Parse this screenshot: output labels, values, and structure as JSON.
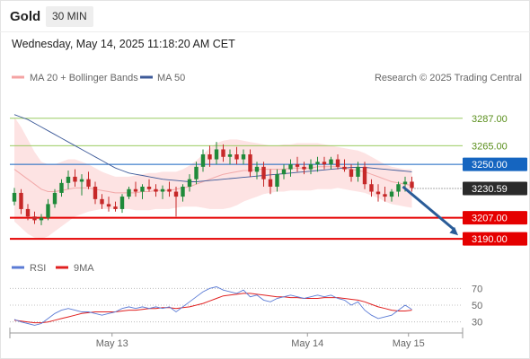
{
  "header": {
    "instrument": "Gold",
    "timeframe": "30 MIN",
    "timestamp": "Wednesday, May 14, 2025 11:18:20 AM CET",
    "credit": "Research © 2025 Trading Central"
  },
  "colors": {
    "bollinger_fill": "#fde3e3",
    "bollinger_mid": "#f2a9a9",
    "ma50": "#3d5a99",
    "resistance": "#8bc34a",
    "pivot": "#1565c0",
    "support": "#e50000",
    "candle_up": "#1f8a3a",
    "candle_down": "#c62828",
    "arrow": "#2a5c98",
    "rsi": "#5b7bd5",
    "rsi_ma": "#e02020"
  },
  "chart_data": {
    "type": "candlestick",
    "legend": [
      {
        "label": "MA 20 + Bollinger Bands",
        "color": "#f4a3a3"
      },
      {
        "label": "MA 50",
        "color": "#3d5a99"
      }
    ],
    "ylim": [
      3180,
      3310
    ],
    "levels": [
      {
        "label": "3287.00",
        "value": 3287.0,
        "kind": "resistance"
      },
      {
        "label": "3265.00",
        "value": 3265.0,
        "kind": "resistance"
      },
      {
        "label": "3250.00",
        "value": 3250.0,
        "kind": "pivot"
      },
      {
        "label": "3207.00",
        "value": 3207.0,
        "kind": "support"
      },
      {
        "label": "3190.00",
        "value": 3190.0,
        "kind": "support"
      }
    ],
    "last_price": {
      "label": "3230.59",
      "value": 3230.59
    },
    "forecast_arrow": {
      "from_index": 57,
      "from_value": 3232,
      "to_value": 3190
    },
    "candles": [
      [
        3220,
        3231,
        3217,
        3227
      ],
      [
        3227,
        3230,
        3210,
        3214
      ],
      [
        3214,
        3218,
        3205,
        3208
      ],
      [
        3208,
        3212,
        3202,
        3205
      ],
      [
        3205,
        3210,
        3201,
        3207
      ],
      [
        3207,
        3222,
        3205,
        3218
      ],
      [
        3218,
        3230,
        3215,
        3227
      ],
      [
        3227,
        3238,
        3224,
        3235
      ],
      [
        3235,
        3245,
        3230,
        3240
      ],
      [
        3240,
        3246,
        3232,
        3236
      ],
      [
        3236,
        3242,
        3225,
        3238
      ],
      [
        3238,
        3244,
        3230,
        3232
      ],
      [
        3232,
        3236,
        3218,
        3222
      ],
      [
        3222,
        3226,
        3214,
        3218
      ],
      [
        3218,
        3224,
        3212,
        3216
      ],
      [
        3216,
        3220,
        3212,
        3214
      ],
      [
        3214,
        3226,
        3211,
        3224
      ],
      [
        3224,
        3232,
        3222,
        3230
      ],
      [
        3230,
        3236,
        3224,
        3228
      ],
      [
        3228,
        3234,
        3222,
        3232
      ],
      [
        3232,
        3238,
        3228,
        3230
      ],
      [
        3230,
        3234,
        3224,
        3228
      ],
      [
        3228,
        3233,
        3222,
        3230
      ],
      [
        3230,
        3236,
        3224,
        3228
      ],
      [
        3228,
        3232,
        3208,
        3224
      ],
      [
        3224,
        3234,
        3220,
        3232
      ],
      [
        3232,
        3242,
        3228,
        3238
      ],
      [
        3238,
        3252,
        3234,
        3248
      ],
      [
        3248,
        3262,
        3244,
        3258
      ],
      [
        3258,
        3265,
        3248,
        3254
      ],
      [
        3254,
        3268,
        3250,
        3262
      ],
      [
        3262,
        3266,
        3252,
        3256
      ],
      [
        3256,
        3262,
        3250,
        3258
      ],
      [
        3258,
        3264,
        3250,
        3254
      ],
      [
        3254,
        3262,
        3250,
        3258
      ],
      [
        3258,
        3262,
        3240,
        3244
      ],
      [
        3244,
        3252,
        3238,
        3248
      ],
      [
        3248,
        3252,
        3232,
        3238
      ],
      [
        3238,
        3246,
        3226,
        3232
      ],
      [
        3232,
        3246,
        3228,
        3242
      ],
      [
        3242,
        3250,
        3238,
        3246
      ],
      [
        3246,
        3254,
        3240,
        3250
      ],
      [
        3250,
        3256,
        3244,
        3248
      ],
      [
        3248,
        3252,
        3242,
        3246
      ],
      [
        3246,
        3254,
        3242,
        3250
      ],
      [
        3250,
        3256,
        3244,
        3252
      ],
      [
        3252,
        3256,
        3246,
        3250
      ],
      [
        3250,
        3256,
        3246,
        3254
      ],
      [
        3254,
        3258,
        3246,
        3248
      ],
      [
        3248,
        3254,
        3244,
        3246
      ],
      [
        3246,
        3250,
        3236,
        3240
      ],
      [
        3240,
        3252,
        3236,
        3248
      ],
      [
        3248,
        3252,
        3230,
        3234
      ],
      [
        3234,
        3238,
        3224,
        3228
      ],
      [
        3228,
        3234,
        3220,
        3226
      ],
      [
        3226,
        3232,
        3220,
        3224
      ],
      [
        3224,
        3230,
        3220,
        3228
      ],
      [
        3228,
        3236,
        3224,
        3234
      ],
      [
        3234,
        3240,
        3228,
        3236
      ],
      [
        3236,
        3240,
        3228,
        3231
      ]
    ],
    "ma50": [
      3290,
      3288,
      3286,
      3283,
      3280,
      3277,
      3274,
      3271,
      3268,
      3265,
      3262,
      3259,
      3256,
      3253,
      3250,
      3247,
      3245,
      3243,
      3242,
      3241,
      3240,
      3239,
      3238,
      3237.5,
      3237,
      3236.5,
      3236,
      3236,
      3236.5,
      3237,
      3237.5,
      3238,
      3238.5,
      3239,
      3239.5,
      3240,
      3240.5,
      3241,
      3241.5,
      3242,
      3242.5,
      3243,
      3243.5,
      3244,
      3244.5,
      3245,
      3245.5,
      3246,
      3246.5,
      3247,
      3247.5,
      3247.5,
      3247.5,
      3247,
      3246.5,
      3246,
      3245.5,
      3245,
      3244.5,
      3244
    ],
    "bollinger": {
      "upper": [
        3288,
        3280,
        3270,
        3260,
        3252,
        3250,
        3250,
        3252,
        3254,
        3254,
        3252,
        3250,
        3247,
        3244,
        3242,
        3240,
        3240,
        3240,
        3241,
        3242,
        3243,
        3243,
        3244,
        3244,
        3244,
        3246,
        3249,
        3253,
        3258,
        3263,
        3267,
        3269,
        3270,
        3270,
        3269,
        3268,
        3267,
        3266,
        3265,
        3265,
        3266,
        3266,
        3267,
        3267,
        3267,
        3267,
        3266,
        3265,
        3264,
        3263,
        3262,
        3261,
        3259,
        3256,
        3253,
        3250,
        3248,
        3247,
        3246,
        3246
      ],
      "middle": [
        3246,
        3242,
        3238,
        3234,
        3230,
        3228,
        3228,
        3229,
        3230,
        3231,
        3231,
        3231,
        3230,
        3229,
        3228,
        3227,
        3227,
        3227,
        3227,
        3228,
        3228,
        3229,
        3229,
        3229,
        3230,
        3231,
        3232,
        3234,
        3236,
        3238,
        3240,
        3242,
        3243,
        3244,
        3245,
        3245,
        3246,
        3246,
        3246,
        3246,
        3246,
        3247,
        3247,
        3247,
        3247,
        3248,
        3248,
        3248,
        3248,
        3247,
        3246,
        3245,
        3244,
        3242,
        3240,
        3238,
        3236,
        3235,
        3234,
        3233
      ],
      "lower": [
        3204,
        3199,
        3194,
        3191,
        3190,
        3192,
        3196,
        3200,
        3204,
        3208,
        3210,
        3212,
        3213,
        3214,
        3214,
        3214,
        3214,
        3214,
        3213,
        3213,
        3213,
        3214,
        3214,
        3214,
        3215,
        3216,
        3216,
        3216,
        3215,
        3214,
        3214,
        3214,
        3215,
        3217,
        3220,
        3222,
        3224,
        3226,
        3227,
        3228,
        3228,
        3229,
        3229,
        3229,
        3229,
        3230,
        3230,
        3230,
        3231,
        3230,
        3229,
        3228,
        3227,
        3225,
        3223,
        3220,
        3218,
        3217,
        3216,
        3215
      ]
    },
    "x_ticks": [
      {
        "label": "May 13",
        "index": 14.5
      },
      {
        "label": "May 14",
        "index": 43.5
      },
      {
        "label": "May 15",
        "index": 58.5
      }
    ],
    "rsi_panel": {
      "legend": [
        {
          "label": "RSI",
          "color": "#5b7bd5"
        },
        {
          "label": "9MA",
          "color": "#e02020"
        }
      ],
      "ylim": [
        20,
        80
      ],
      "levels": [
        {
          "label": "70",
          "value": 70
        },
        {
          "label": "50",
          "value": 50
        },
        {
          "label": "30",
          "value": 30
        }
      ],
      "rsi": [
        33,
        30,
        28,
        26,
        28,
        34,
        40,
        44,
        46,
        44,
        42,
        42,
        40,
        38,
        40,
        42,
        46,
        48,
        46,
        48,
        46,
        48,
        46,
        48,
        42,
        48,
        54,
        60,
        66,
        70,
        72,
        68,
        66,
        64,
        68,
        60,
        62,
        56,
        54,
        58,
        60,
        62,
        60,
        58,
        60,
        62,
        60,
        62,
        58,
        56,
        50,
        54,
        44,
        38,
        34,
        36,
        38,
        44,
        50,
        45
      ],
      "ma": [
        32,
        31,
        30,
        29,
        29,
        30,
        32,
        34,
        36,
        38,
        40,
        41,
        42,
        42,
        42,
        42,
        43,
        44,
        44,
        45,
        46,
        46,
        47,
        47,
        46,
        47,
        48,
        50,
        52,
        55,
        58,
        61,
        62,
        63,
        64,
        64,
        63,
        62,
        61,
        60,
        60,
        59,
        59,
        58,
        58,
        58,
        59,
        59,
        59,
        58,
        57,
        56,
        54,
        51,
        48,
        46,
        44,
        43,
        43,
        44
      ]
    }
  }
}
